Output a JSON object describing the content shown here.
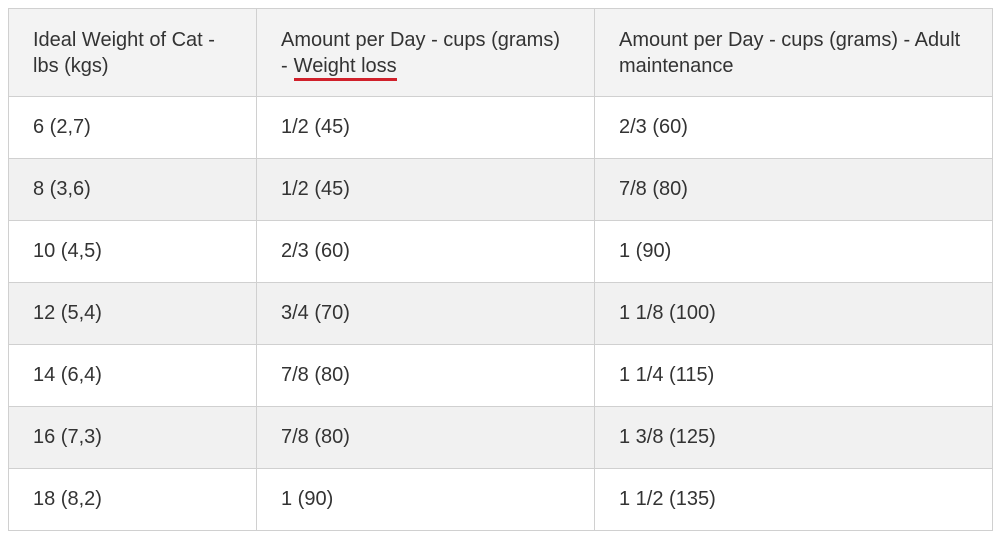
{
  "table": {
    "header": [
      {
        "text": "Ideal Weight of Cat - lbs (kgs)"
      },
      {
        "text": "Amount per Day - cups (grams) -",
        "highlight": "Weight loss"
      },
      {
        "text": "Amount per Day - cups (grams) - Adult maintenance"
      }
    ],
    "rows": [
      [
        "6 (2,7)",
        "1/2 (45)",
        "2/3 (60)"
      ],
      [
        "8 (3,6)",
        "1/2 (45)",
        "7/8 (80)"
      ],
      [
        "10 (4,5)",
        "2/3 (60)",
        "1 (90)"
      ],
      [
        "12 (5,4)",
        "3/4 (70)",
        "1 1/8 (100)"
      ],
      [
        "14 (6,4)",
        "7/8 (80)",
        "1 1/4 (115)"
      ],
      [
        "16 (7,3)",
        "7/8 (80)",
        "1 3/8 (125)"
      ],
      [
        "18 (8,2)",
        "1 (90)",
        "1 1/2 (135)"
      ]
    ]
  }
}
